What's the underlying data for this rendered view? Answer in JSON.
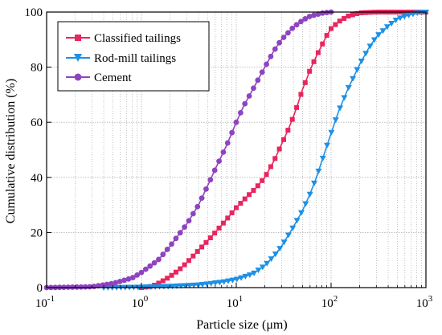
{
  "chart_data": {
    "type": "line",
    "x_scale": "log",
    "xlabel": "Particle size (μm)",
    "ylabel": "Cumulative distribution (%)",
    "xlim": [
      0.1,
      1000
    ],
    "ylim": [
      0,
      100
    ],
    "x_ticks": [
      {
        "base": "10",
        "exp": "-1"
      },
      {
        "base": "10",
        "exp": "0"
      },
      {
        "base": "10",
        "exp": "1"
      },
      {
        "base": "10",
        "exp": "2"
      },
      {
        "base": "10",
        "exp": "3"
      }
    ],
    "y_ticks": [
      "0",
      "20",
      "40",
      "60",
      "80",
      "100"
    ],
    "grid": true,
    "legend_position": "top-left",
    "series": [
      {
        "name": "Classified tailings",
        "color": "#e8265e",
        "marker": "square",
        "points": [
          [
            1.0,
            0
          ],
          [
            1.3,
            0.5
          ],
          [
            1.6,
            2
          ],
          [
            2,
            4
          ],
          [
            2.5,
            6.5
          ],
          [
            3,
            9
          ],
          [
            4,
            13.5
          ],
          [
            5,
            17
          ],
          [
            6,
            20
          ],
          [
            8,
            25
          ],
          [
            10,
            29
          ],
          [
            13,
            33
          ],
          [
            16,
            36
          ],
          [
            20,
            40
          ],
          [
            25,
            46
          ],
          [
            30,
            52
          ],
          [
            35,
            57
          ],
          [
            40,
            62
          ],
          [
            45,
            67
          ],
          [
            50,
            72
          ],
          [
            55,
            75.5
          ],
          [
            60,
            79
          ],
          [
            70,
            84
          ],
          [
            80,
            88
          ],
          [
            90,
            91.5
          ],
          [
            100,
            94
          ],
          [
            120,
            96.5
          ],
          [
            150,
            98.5
          ],
          [
            200,
            99.7
          ],
          [
            300,
            100
          ],
          [
            600,
            100
          ],
          [
            1000,
            100
          ]
        ]
      },
      {
        "name": "Rod-mill tailings",
        "color": "#1e90e6",
        "marker": "triangle-down",
        "points": [
          [
            0.4,
            0
          ],
          [
            1,
            0.2
          ],
          [
            2,
            0.5
          ],
          [
            4,
            1
          ],
          [
            7,
            2
          ],
          [
            10,
            3
          ],
          [
            15,
            5
          ],
          [
            20,
            8
          ],
          [
            25,
            11.5
          ],
          [
            30,
            15
          ],
          [
            40,
            22
          ],
          [
            50,
            28
          ],
          [
            60,
            34
          ],
          [
            70,
            40
          ],
          [
            80,
            46
          ],
          [
            100,
            56
          ],
          [
            120,
            64
          ],
          [
            150,
            72
          ],
          [
            200,
            81
          ],
          [
            250,
            87
          ],
          [
            300,
            91
          ],
          [
            400,
            95
          ],
          [
            500,
            97.5
          ],
          [
            600,
            98.5
          ],
          [
            800,
            99.7
          ],
          [
            1000,
            100
          ]
        ]
      },
      {
        "name": "Cement",
        "color": "#8e44c0",
        "marker": "circle",
        "points": [
          [
            0.1,
            0
          ],
          [
            0.3,
            0.3
          ],
          [
            0.5,
            1.5
          ],
          [
            0.8,
            3.5
          ],
          [
            1,
            5.5
          ],
          [
            1.5,
            10
          ],
          [
            2,
            15
          ],
          [
            3,
            23
          ],
          [
            4,
            30
          ],
          [
            5,
            37
          ],
          [
            6,
            43
          ],
          [
            8,
            52
          ],
          [
            10,
            60
          ],
          [
            12,
            66
          ],
          [
            15,
            72
          ],
          [
            20,
            80
          ],
          [
            25,
            86
          ],
          [
            30,
            90
          ],
          [
            40,
            94.5
          ],
          [
            50,
            97
          ],
          [
            60,
            98.5
          ],
          [
            80,
            99.6
          ],
          [
            100,
            100
          ]
        ]
      }
    ]
  }
}
